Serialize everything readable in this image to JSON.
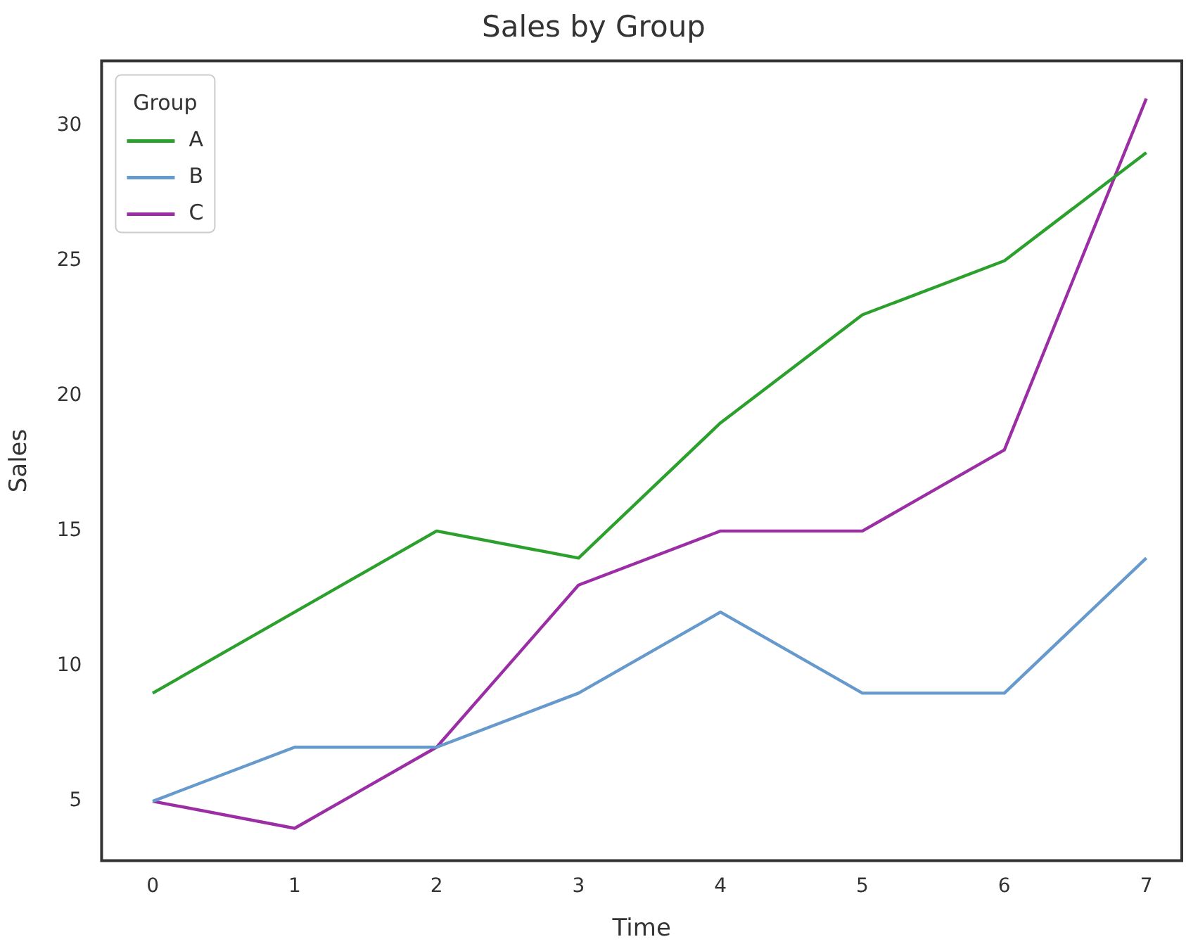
{
  "chart_data": {
    "type": "line",
    "title": "Sales by Group",
    "xlabel": "Time",
    "ylabel": "Sales",
    "legend_title": "Group",
    "x": [
      0,
      1,
      2,
      3,
      4,
      5,
      6,
      7
    ],
    "series": [
      {
        "name": "A",
        "color": "#2ca02c",
        "values": [
          9,
          12,
          15,
          14,
          19,
          23,
          25,
          29
        ]
      },
      {
        "name": "B",
        "color": "#6699cc",
        "values": [
          5,
          7,
          7,
          9,
          12,
          9,
          9,
          14
        ]
      },
      {
        "name": "C",
        "color": "#9b2ea5",
        "values": [
          5,
          4,
          7,
          13,
          15,
          15,
          18,
          31
        ]
      }
    ],
    "xlim": [
      -0.36,
      7.25
    ],
    "xticks": [
      0,
      1,
      2,
      3,
      4,
      5,
      6,
      7
    ],
    "ylim": [
      2.8,
      32.4
    ],
    "yticks": [
      5,
      10,
      15,
      20,
      25,
      30
    ],
    "grid": false,
    "legend": "top left",
    "marker": "none",
    "line_style": "solid"
  }
}
